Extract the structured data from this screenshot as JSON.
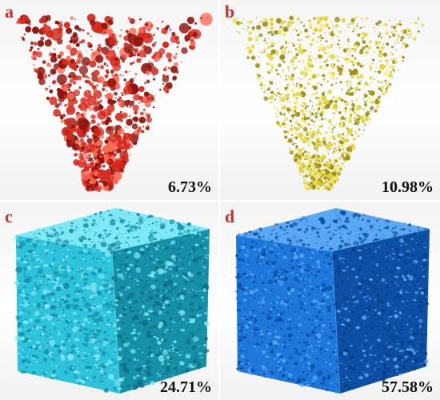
{
  "panels": [
    {
      "letter": "a",
      "porosity": "6.73%",
      "color": "#d62a1e",
      "shade": "#8e140c",
      "light": "#ff6a55",
      "shape": "pore-cloud"
    },
    {
      "letter": "b",
      "porosity": "10.98%",
      "color": "#e2d33c",
      "shade": "#9c8d16",
      "light": "#f6ee8a",
      "shape": "pore-cloud"
    },
    {
      "letter": "c",
      "porosity": "24.71%",
      "color": "#2ec3dc",
      "shade": "#1590a8",
      "light": "#7ee8f4",
      "shape": "cube"
    },
    {
      "letter": "d",
      "porosity": "57.58%",
      "color": "#1e78dc",
      "shade": "#0c4fa4",
      "light": "#5aa8f2",
      "shape": "cube"
    }
  ],
  "letter_color": "#c8302a"
}
